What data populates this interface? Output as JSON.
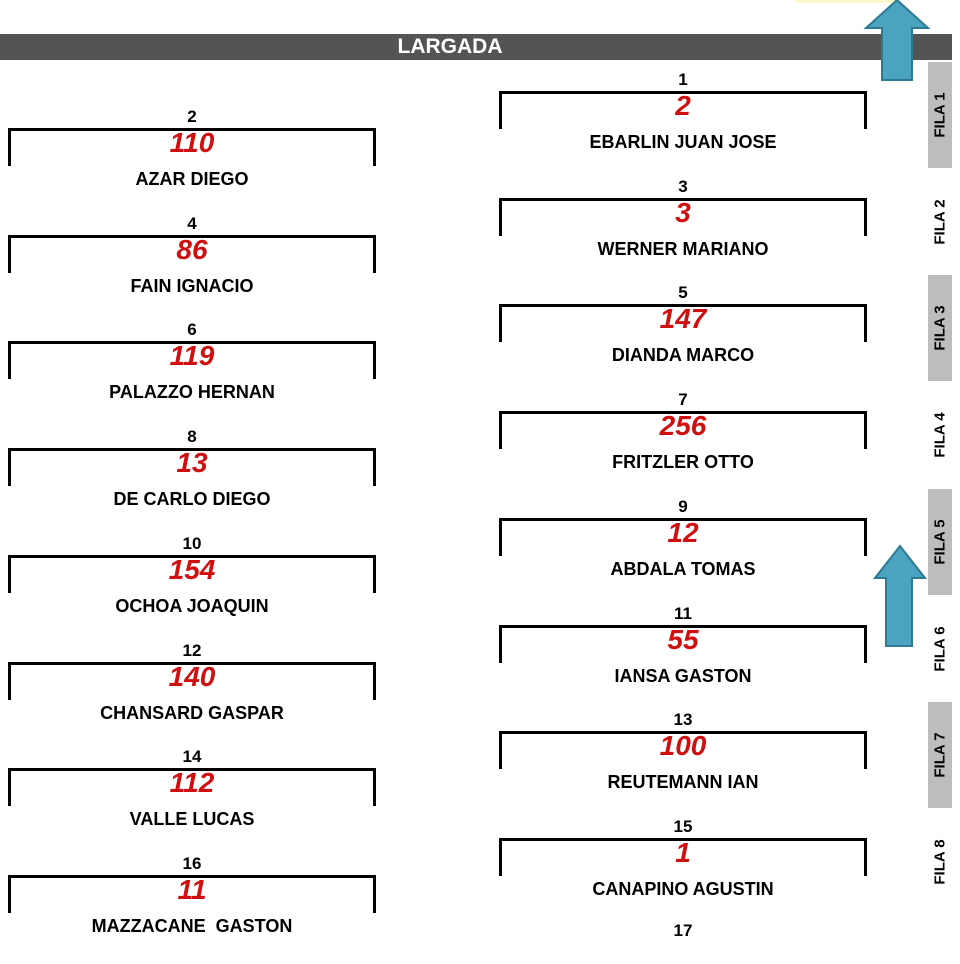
{
  "header": {
    "title": "LARGADA"
  },
  "grid": [
    {
      "pos": "1",
      "car": "2",
      "name": "EBARLIN JUAN JOSE"
    },
    {
      "pos": "2",
      "car": "110",
      "name": "AZAR DIEGO"
    },
    {
      "pos": "3",
      "car": "3",
      "name": "WERNER MARIANO"
    },
    {
      "pos": "4",
      "car": "86",
      "name": "FAIN IGNACIO"
    },
    {
      "pos": "5",
      "car": "147",
      "name": "DIANDA MARCO"
    },
    {
      "pos": "6",
      "car": "119",
      "name": "PALAZZO HERNAN"
    },
    {
      "pos": "7",
      "car": "256",
      "name": "FRITZLER OTTO"
    },
    {
      "pos": "8",
      "car": "13",
      "name": "DE CARLO DIEGO"
    },
    {
      "pos": "9",
      "car": "12",
      "name": "ABDALA TOMAS"
    },
    {
      "pos": "10",
      "car": "154",
      "name": "OCHOA JOAQUIN"
    },
    {
      "pos": "11",
      "car": "55",
      "name": "IANSA GASTON"
    },
    {
      "pos": "12",
      "car": "140",
      "name": "CHANSARD GASPAR"
    },
    {
      "pos": "13",
      "car": "100",
      "name": "REUTEMANN IAN"
    },
    {
      "pos": "14",
      "car": "112",
      "name": "VALLE LUCAS"
    },
    {
      "pos": "15",
      "car": "1",
      "name": "CANAPINO AGUSTIN"
    },
    {
      "pos": "16",
      "car": "11",
      "name": "MAZZACANE  GASTON"
    }
  ],
  "next_position": "17",
  "rows": [
    "FILA 1",
    "FILA 2",
    "FILA 3",
    "FILA 4",
    "FILA 5",
    "FILA 6",
    "FILA 7",
    "FILA 8"
  ],
  "colors": {
    "car_number": "#d01010",
    "header": "#545454",
    "arrow": "#4aa3bf",
    "row_shade": "#bdbdbd"
  }
}
